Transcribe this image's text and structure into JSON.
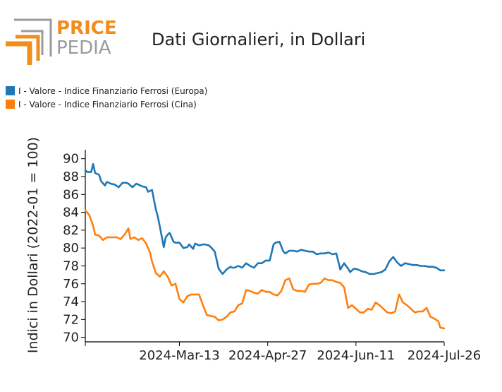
{
  "logo": {
    "line1": "PRICE",
    "line2": "PEDIA",
    "accent_color": "#f28c1b",
    "gray_color": "#9a9a9a"
  },
  "chart_data": {
    "type": "line",
    "title": "Dati Giornalieri, in Dollari",
    "ylabel": "Indici in Dollari (2022-01 = 100)",
    "xlabel": "",
    "ylim": [
      69.5,
      91
    ],
    "yticks": [
      70,
      72,
      74,
      76,
      78,
      80,
      82,
      84,
      86,
      88,
      90
    ],
    "xlim": [
      "2024-01-25",
      "2024-07-26"
    ],
    "xticks": [
      "2024-Mar-13",
      "2024-Apr-27",
      "2024-Jun-11",
      "2024-Jul-26"
    ],
    "xtick_dates": [
      "2024-03-13",
      "2024-04-27",
      "2024-06-11",
      "2024-07-26"
    ],
    "grid": false,
    "legend_position": "top-left",
    "series": [
      {
        "name": "I - Valore - Indice Finanziario Ferrosi (Europa)",
        "color": "#1f77b4",
        "x": [
          "2024-01-25",
          "2024-01-26",
          "2024-01-28",
          "2024-01-29",
          "2024-01-30",
          "2024-02-01",
          "2024-02-02",
          "2024-02-04",
          "2024-02-05",
          "2024-02-07",
          "2024-02-09",
          "2024-02-11",
          "2024-02-13",
          "2024-02-15",
          "2024-02-16",
          "2024-02-18",
          "2024-02-20",
          "2024-02-22",
          "2024-02-23",
          "2024-02-25",
          "2024-02-26",
          "2024-02-28",
          "2024-03-01",
          "2024-03-02",
          "2024-03-03",
          "2024-03-05",
          "2024-03-06",
          "2024-03-07",
          "2024-03-08",
          "2024-03-10",
          "2024-03-11",
          "2024-03-13",
          "2024-03-15",
          "2024-03-17",
          "2024-03-18",
          "2024-03-20",
          "2024-03-21",
          "2024-03-23",
          "2024-03-25",
          "2024-03-26",
          "2024-03-28",
          "2024-03-29",
          "2024-03-31",
          "2024-04-02",
          "2024-04-04",
          "2024-04-06",
          "2024-04-08",
          "2024-04-09",
          "2024-04-10",
          "2024-04-12",
          "2024-04-14",
          "2024-04-16",
          "2024-04-18",
          "2024-04-20",
          "2024-04-22",
          "2024-04-24",
          "2024-04-26",
          "2024-04-28",
          "2024-04-30",
          "2024-05-01",
          "2024-05-03",
          "2024-05-05",
          "2024-05-06",
          "2024-05-08",
          "2024-05-10",
          "2024-05-12",
          "2024-05-14",
          "2024-05-16",
          "2024-05-18",
          "2024-05-20",
          "2024-05-22",
          "2024-05-24",
          "2024-05-26",
          "2024-05-28",
          "2024-05-30",
          "2024-06-01",
          "2024-06-03",
          "2024-06-05",
          "2024-06-07",
          "2024-06-08",
          "2024-06-10",
          "2024-06-12",
          "2024-06-14",
          "2024-06-16",
          "2024-06-18",
          "2024-06-20",
          "2024-06-22",
          "2024-06-24",
          "2024-06-26",
          "2024-06-28",
          "2024-06-30",
          "2024-07-02",
          "2024-07-04",
          "2024-07-06",
          "2024-07-08",
          "2024-07-10",
          "2024-07-12",
          "2024-07-14",
          "2024-07-16",
          "2024-07-18",
          "2024-07-20",
          "2024-07-22",
          "2024-07-24",
          "2024-07-26"
        ],
        "y": [
          88.7,
          88.5,
          88.5,
          89.4,
          88.4,
          88.2,
          87.5,
          87.0,
          87.4,
          87.2,
          87.1,
          86.8,
          87.3,
          87.3,
          87.2,
          86.8,
          87.2,
          87.0,
          86.9,
          86.8,
          86.3,
          86.5,
          84.3,
          83.5,
          82.4,
          80.1,
          81.2,
          81.5,
          81.7,
          80.7,
          80.6,
          80.6,
          80.0,
          80.1,
          80.4,
          79.9,
          80.5,
          80.3,
          80.4,
          80.4,
          80.3,
          80.1,
          79.6,
          77.7,
          77.1,
          77.6,
          77.9,
          77.8,
          77.8,
          78.0,
          77.8,
          78.3,
          78.0,
          77.8,
          78.3,
          78.3,
          78.6,
          78.6,
          80.4,
          80.6,
          80.7,
          79.6,
          79.4,
          79.7,
          79.7,
          79.6,
          79.8,
          79.7,
          79.6,
          79.6,
          79.3,
          79.4,
          79.4,
          79.5,
          79.3,
          79.4,
          77.6,
          78.3,
          77.7,
          77.3,
          77.7,
          77.6,
          77.4,
          77.3,
          77.1,
          77.1,
          77.2,
          77.3,
          77.6,
          78.5,
          79.0,
          78.4,
          78.0,
          78.3,
          78.2,
          78.1,
          78.1,
          78.0,
          78.0,
          77.9,
          77.9,
          77.8,
          77.5,
          77.5
        ]
      },
      {
        "name": "I - Valore - Indice Finanziario Ferrosi (Cina)",
        "color": "#ff7f0e",
        "x": [
          "2024-01-25",
          "2024-01-27",
          "2024-01-29",
          "2024-01-30",
          "2024-02-01",
          "2024-02-03",
          "2024-02-05",
          "2024-02-07",
          "2024-02-09",
          "2024-02-10",
          "2024-02-12",
          "2024-02-14",
          "2024-02-16",
          "2024-02-17",
          "2024-02-19",
          "2024-02-21",
          "2024-02-23",
          "2024-02-25",
          "2024-02-27",
          "2024-02-28",
          "2024-03-01",
          "2024-03-03",
          "2024-03-05",
          "2024-03-06",
          "2024-03-07",
          "2024-03-09",
          "2024-03-11",
          "2024-03-13",
          "2024-03-15",
          "2024-03-17",
          "2024-03-19",
          "2024-03-21",
          "2024-03-23",
          "2024-03-25",
          "2024-03-27",
          "2024-03-29",
          "2024-03-31",
          "2024-04-02",
          "2024-04-04",
          "2024-04-06",
          "2024-04-08",
          "2024-04-10",
          "2024-04-12",
          "2024-04-14",
          "2024-04-16",
          "2024-04-18",
          "2024-04-20",
          "2024-04-22",
          "2024-04-24",
          "2024-04-26",
          "2024-04-28",
          "2024-04-30",
          "2024-05-02",
          "2024-05-04",
          "2024-05-06",
          "2024-05-08",
          "2024-05-10",
          "2024-05-12",
          "2024-05-14",
          "2024-05-16",
          "2024-05-18",
          "2024-05-20",
          "2024-05-22",
          "2024-05-24",
          "2024-05-26",
          "2024-05-28",
          "2024-05-30",
          "2024-06-01",
          "2024-06-03",
          "2024-06-05",
          "2024-06-07",
          "2024-06-09",
          "2024-06-11",
          "2024-06-13",
          "2024-06-15",
          "2024-06-17",
          "2024-06-19",
          "2024-06-21",
          "2024-06-23",
          "2024-06-25",
          "2024-06-27",
          "2024-06-29",
          "2024-07-01",
          "2024-07-03",
          "2024-07-05",
          "2024-07-07",
          "2024-07-09",
          "2024-07-11",
          "2024-07-13",
          "2024-07-15",
          "2024-07-17",
          "2024-07-19",
          "2024-07-21",
          "2024-07-23",
          "2024-07-24",
          "2024-07-26"
        ],
        "y": [
          84.2,
          83.7,
          82.5,
          81.5,
          81.4,
          80.9,
          81.2,
          81.2,
          81.2,
          81.2,
          81.0,
          81.5,
          82.2,
          81.0,
          81.2,
          80.9,
          81.1,
          80.5,
          79.5,
          78.5,
          77.2,
          76.8,
          77.4,
          77.1,
          76.8,
          75.8,
          76.0,
          74.3,
          73.9,
          74.6,
          74.8,
          74.8,
          74.8,
          73.6,
          72.5,
          72.4,
          72.3,
          71.9,
          72.0,
          72.3,
          72.8,
          72.9,
          73.6,
          73.8,
          75.3,
          75.2,
          75.0,
          74.9,
          75.3,
          75.1,
          75.1,
          74.8,
          74.7,
          75.2,
          76.4,
          76.6,
          75.4,
          75.2,
          75.2,
          75.1,
          75.9,
          76.0,
          76.0,
          76.1,
          76.6,
          76.4,
          76.4,
          76.2,
          76.1,
          75.6,
          73.3,
          73.6,
          73.2,
          72.8,
          72.8,
          73.2,
          73.1,
          73.9,
          73.6,
          73.2,
          72.8,
          72.7,
          72.9,
          74.8,
          73.9,
          73.6,
          73.2,
          72.8,
          72.9,
          72.9,
          73.3,
          72.3,
          72.1,
          71.8,
          71.1,
          71.0
        ]
      }
    ]
  }
}
